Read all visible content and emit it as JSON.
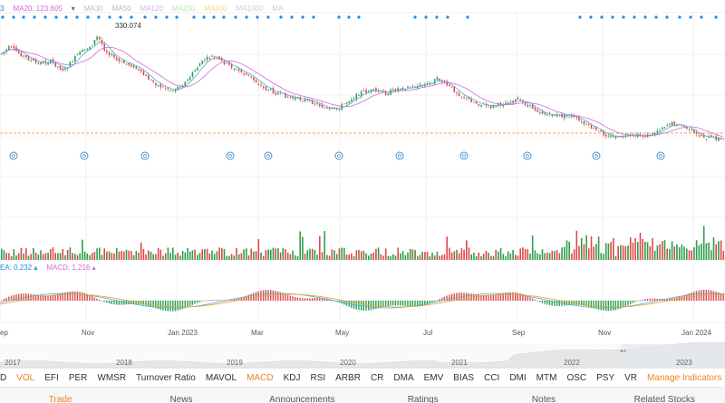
{
  "legends": {
    "price": [
      {
        "text": "3",
        "color": "#1e88e5"
      },
      {
        "text": "MA20: 123.605",
        "color": "#d16ad6"
      },
      {
        "text": "▾",
        "color": "#666666"
      },
      {
        "text": "MA30",
        "color": "#bbbbbb"
      },
      {
        "text": "MA50",
        "color": "#bbbbbb"
      },
      {
        "text": "MA120",
        "color": "#d8b4e8"
      },
      {
        "text": "MA250",
        "color": "#b8e6b8"
      },
      {
        "text": "MA500",
        "color": "#f0e08a"
      },
      {
        "text": "MA1000",
        "color": "#cccccc"
      },
      {
        "text": "MA",
        "color": "#cccccc"
      }
    ],
    "macd": [
      {
        "text": "EA: 0.232 ▴",
        "color": "#1e88e5"
      },
      {
        "text": "MACD: 1.216 ▴",
        "color": "#d16ad6"
      }
    ]
  },
  "price_chart": {
    "high_label": "330.074",
    "colors": {
      "up": "#2e9e4b",
      "down": "#e04848",
      "ma_fast": "#45b3d9",
      "ma_slow": "#d16ad6",
      "ref_line": "#f0a060",
      "dot": "#1e88e5"
    }
  },
  "time_axis_labels": [
    "ep",
    "Nov",
    "Jan 2023",
    "Mar",
    "May",
    "Jul",
    "Sep",
    "Nov",
    "Jan 2024"
  ],
  "overview_years": [
    "2017",
    "2018",
    "2019",
    "2020",
    "2021",
    "2022",
    "2023"
  ],
  "indicator_tabs": [
    {
      "label": "D",
      "active": false
    },
    {
      "label": "VOL",
      "active": true
    },
    {
      "label": "EFI",
      "active": false
    },
    {
      "label": "PER",
      "active": false
    },
    {
      "label": "WMSR",
      "active": false
    },
    {
      "label": "Turnover Ratio",
      "active": false
    },
    {
      "label": "MAVOL",
      "active": false
    },
    {
      "label": "MACD",
      "active": true
    },
    {
      "label": "KDJ",
      "active": false
    },
    {
      "label": "RSI",
      "active": false
    },
    {
      "label": "ARBR",
      "active": false
    },
    {
      "label": "CR",
      "active": false
    },
    {
      "label": "DMA",
      "active": false
    },
    {
      "label": "EMV",
      "active": false
    },
    {
      "label": "BIAS",
      "active": false
    },
    {
      "label": "CCI",
      "active": false
    },
    {
      "label": "DMI",
      "active": false
    },
    {
      "label": "MTM",
      "active": false
    },
    {
      "label": "OSC",
      "active": false
    },
    {
      "label": "PSY",
      "active": false
    },
    {
      "label": "VR",
      "active": false
    }
  ],
  "manage_indicators_label": "Manage Indicators",
  "bottom_tabs": [
    {
      "label": "Trade",
      "active": true
    },
    {
      "label": "News",
      "active": false
    },
    {
      "label": "Announcements",
      "active": false
    },
    {
      "label": "Ratings",
      "active": false
    },
    {
      "label": "Notes",
      "active": false
    },
    {
      "label": "Related Stocks",
      "active": false
    }
  ]
}
